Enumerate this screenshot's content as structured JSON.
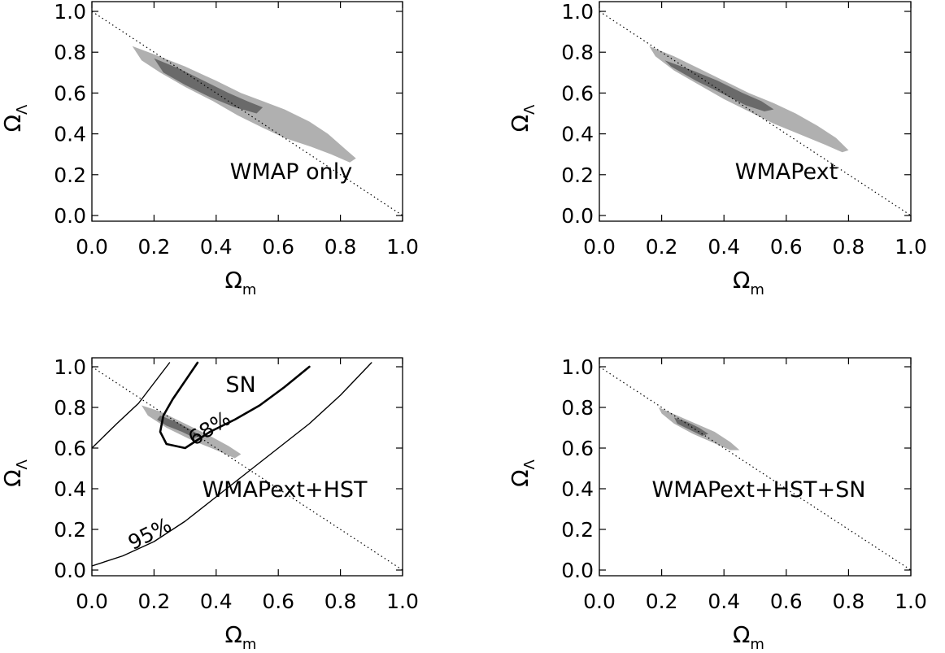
{
  "chart_data": [
    {
      "type": "scatter",
      "panel_label": "WMAP  only",
      "xlabel": {
        "symbol": "Ω",
        "subscript": "m"
      },
      "ylabel": {
        "symbol": "Ω",
        "subscript": "Λ"
      },
      "xlim": [
        0.0,
        1.0
      ],
      "ylim": [
        0.0,
        1.0
      ],
      "xticks": [
        "0.0",
        "0.2",
        "0.4",
        "0.6",
        "0.8",
        "1.0"
      ],
      "yticks": [
        "0.0",
        "0.2",
        "0.4",
        "0.6",
        "0.8",
        "1.0"
      ],
      "flat_universe_line": [
        [
          0.0,
          1.0
        ],
        [
          1.0,
          0.0
        ]
      ],
      "regions": [
        {
          "level": "95%",
          "color": "#b0b0b0",
          "polygon": [
            [
              0.13,
              0.83
            ],
            [
              0.2,
              0.79
            ],
            [
              0.3,
              0.73
            ],
            [
              0.4,
              0.66
            ],
            [
              0.48,
              0.6
            ],
            [
              0.55,
              0.56
            ],
            [
              0.62,
              0.52
            ],
            [
              0.7,
              0.46
            ],
            [
              0.76,
              0.4
            ],
            [
              0.82,
              0.32
            ],
            [
              0.85,
              0.28
            ],
            [
              0.83,
              0.26
            ],
            [
              0.77,
              0.3
            ],
            [
              0.7,
              0.34
            ],
            [
              0.62,
              0.38
            ],
            [
              0.55,
              0.43
            ],
            [
              0.47,
              0.49
            ],
            [
              0.39,
              0.56
            ],
            [
              0.3,
              0.63
            ],
            [
              0.22,
              0.7
            ],
            [
              0.16,
              0.76
            ]
          ]
        },
        {
          "level": "68%",
          "color": "#6a6a6a",
          "polygon": [
            [
              0.2,
              0.77
            ],
            [
              0.28,
              0.72
            ],
            [
              0.36,
              0.66
            ],
            [
              0.44,
              0.6
            ],
            [
              0.5,
              0.56
            ],
            [
              0.55,
              0.53
            ],
            [
              0.53,
              0.5
            ],
            [
              0.46,
              0.53
            ],
            [
              0.38,
              0.58
            ],
            [
              0.3,
              0.64
            ],
            [
              0.23,
              0.7
            ]
          ]
        }
      ]
    },
    {
      "type": "scatter",
      "panel_label": "WMAPext",
      "xlabel": {
        "symbol": "Ω",
        "subscript": "m"
      },
      "ylabel": {
        "symbol": "Ω",
        "subscript": "Λ"
      },
      "xlim": [
        0.0,
        1.0
      ],
      "ylim": [
        0.0,
        1.0
      ],
      "xticks": [
        "0.0",
        "0.2",
        "0.4",
        "0.6",
        "0.8",
        "1.0"
      ],
      "yticks": [
        "0.0",
        "0.2",
        "0.4",
        "0.6",
        "0.8",
        "1.0"
      ],
      "flat_universe_line": [
        [
          0.0,
          1.0
        ],
        [
          1.0,
          0.0
        ]
      ],
      "regions": [
        {
          "level": "95%",
          "color": "#b0b0b0",
          "polygon": [
            [
              0.16,
              0.83
            ],
            [
              0.24,
              0.78
            ],
            [
              0.32,
              0.72
            ],
            [
              0.4,
              0.66
            ],
            [
              0.48,
              0.6
            ],
            [
              0.56,
              0.55
            ],
            [
              0.63,
              0.5
            ],
            [
              0.7,
              0.44
            ],
            [
              0.76,
              0.38
            ],
            [
              0.8,
              0.32
            ],
            [
              0.78,
              0.31
            ],
            [
              0.72,
              0.35
            ],
            [
              0.64,
              0.4
            ],
            [
              0.56,
              0.45
            ],
            [
              0.48,
              0.51
            ],
            [
              0.4,
              0.57
            ],
            [
              0.32,
              0.64
            ],
            [
              0.24,
              0.71
            ],
            [
              0.18,
              0.78
            ]
          ]
        },
        {
          "level": "68%",
          "color": "#6a6a6a",
          "polygon": [
            [
              0.21,
              0.76
            ],
            [
              0.3,
              0.71
            ],
            [
              0.38,
              0.66
            ],
            [
              0.46,
              0.6
            ],
            [
              0.52,
              0.56
            ],
            [
              0.56,
              0.52
            ],
            [
              0.53,
              0.51
            ],
            [
              0.47,
              0.54
            ],
            [
              0.39,
              0.6
            ],
            [
              0.31,
              0.66
            ],
            [
              0.23,
              0.73
            ]
          ]
        }
      ]
    },
    {
      "type": "scatter",
      "panel_label": "WMAPext+HST",
      "overlay_label": "SN",
      "contour_labels": [
        "68%",
        "95%"
      ],
      "xlabel": {
        "symbol": "Ω",
        "subscript": "m"
      },
      "ylabel": {
        "symbol": "Ω",
        "subscript": "Λ"
      },
      "xlim": [
        0.0,
        1.0
      ],
      "ylim": [
        0.0,
        1.0
      ],
      "xticks": [
        "0.0",
        "0.2",
        "0.4",
        "0.6",
        "0.8",
        "1.0"
      ],
      "yticks": [
        "0.0",
        "0.2",
        "0.4",
        "0.6",
        "0.8",
        "1.0"
      ],
      "flat_universe_line": [
        [
          0.0,
          1.0
        ],
        [
          1.0,
          0.0
        ]
      ],
      "regions": [
        {
          "level": "95%",
          "color": "#b0b0b0",
          "polygon": [
            [
              0.16,
              0.81
            ],
            [
              0.22,
              0.78
            ],
            [
              0.3,
              0.72
            ],
            [
              0.38,
              0.66
            ],
            [
              0.44,
              0.61
            ],
            [
              0.48,
              0.57
            ],
            [
              0.46,
              0.55
            ],
            [
              0.4,
              0.59
            ],
            [
              0.32,
              0.64
            ],
            [
              0.24,
              0.7
            ],
            [
              0.18,
              0.76
            ]
          ]
        },
        {
          "level": "68%",
          "color": "#6a6a6a",
          "polygon": [
            [
              0.22,
              0.76
            ],
            [
              0.27,
              0.73
            ],
            [
              0.32,
              0.69
            ],
            [
              0.35,
              0.66
            ],
            [
              0.33,
              0.65
            ],
            [
              0.29,
              0.68
            ],
            [
              0.24,
              0.71
            ],
            [
              0.21,
              0.74
            ]
          ]
        }
      ],
      "sn_contours": [
        {
          "level": "68%",
          "width": 2.6,
          "points": [
            [
              0.34,
              1.02
            ],
            [
              0.3,
              0.93
            ],
            [
              0.26,
              0.84
            ],
            [
              0.23,
              0.76
            ],
            [
              0.22,
              0.68
            ],
            [
              0.24,
              0.62
            ],
            [
              0.3,
              0.6
            ],
            [
              0.33,
              0.63
            ],
            [
              0.38,
              0.68
            ],
            [
              0.46,
              0.74
            ],
            [
              0.54,
              0.81
            ],
            [
              0.62,
              0.9
            ],
            [
              0.7,
              1.0
            ]
          ]
        },
        {
          "level": "95%",
          "width": 1.4,
          "points": [
            [
              0.0,
              0.6
            ],
            [
              0.08,
              0.72
            ],
            [
              0.15,
              0.82
            ],
            [
              0.2,
              0.92
            ],
            [
              0.25,
              1.02
            ]
          ]
        },
        {
          "level": "95%",
          "width": 1.4,
          "points": [
            [
              0.0,
              0.02
            ],
            [
              0.1,
              0.07
            ],
            [
              0.2,
              0.14
            ],
            [
              0.3,
              0.24
            ],
            [
              0.4,
              0.36
            ],
            [
              0.5,
              0.48
            ],
            [
              0.6,
              0.6
            ],
            [
              0.7,
              0.72
            ],
            [
              0.8,
              0.86
            ],
            [
              0.9,
              1.02
            ]
          ]
        }
      ]
    },
    {
      "type": "scatter",
      "panel_label": "WMAPext+HST+SN",
      "xlabel": {
        "symbol": "Ω",
        "subscript": "m"
      },
      "ylabel": {
        "symbol": "Ω",
        "subscript": "Λ"
      },
      "xlim": [
        0.0,
        1.0
      ],
      "ylim": [
        0.0,
        1.0
      ],
      "xticks": [
        "0.0",
        "0.2",
        "0.4",
        "0.6",
        "0.8",
        "1.0"
      ],
      "yticks": [
        "0.0",
        "0.2",
        "0.4",
        "0.6",
        "0.8",
        "1.0"
      ],
      "flat_universe_line": [
        [
          0.0,
          1.0
        ],
        [
          1.0,
          0.0
        ]
      ],
      "regions": [
        {
          "level": "95%",
          "color": "#b0b0b0",
          "polygon": [
            [
              0.19,
              0.8
            ],
            [
              0.25,
              0.76
            ],
            [
              0.31,
              0.72
            ],
            [
              0.37,
              0.68
            ],
            [
              0.42,
              0.63
            ],
            [
              0.45,
              0.59
            ],
            [
              0.42,
              0.59
            ],
            [
              0.36,
              0.63
            ],
            [
              0.3,
              0.67
            ],
            [
              0.24,
              0.72
            ],
            [
              0.2,
              0.77
            ]
          ]
        },
        {
          "level": "68%",
          "color": "#6a6a6a",
          "polygon": [
            [
              0.24,
              0.75
            ],
            [
              0.28,
              0.73
            ],
            [
              0.32,
              0.7
            ],
            [
              0.35,
              0.67
            ],
            [
              0.33,
              0.66
            ],
            [
              0.29,
              0.69
            ],
            [
              0.25,
              0.72
            ]
          ]
        }
      ]
    }
  ]
}
